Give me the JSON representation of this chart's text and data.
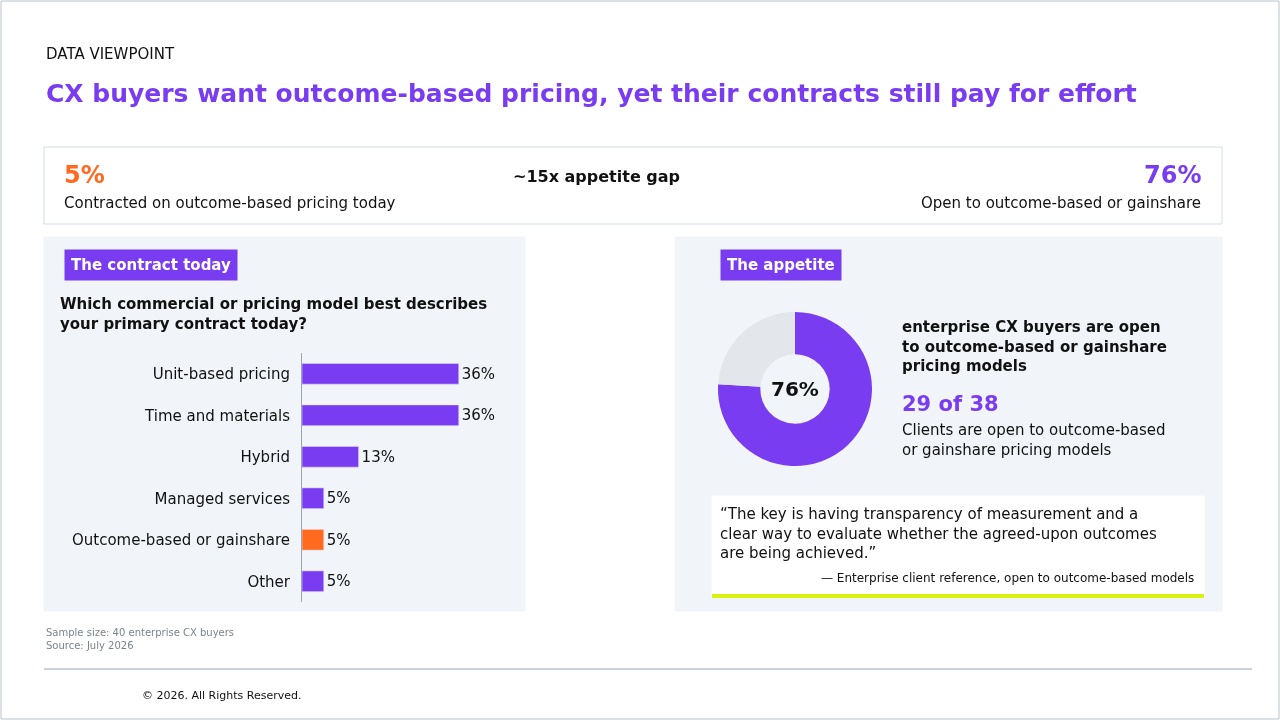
{
  "chart_data": [
    {
      "type": "other",
      "subtitle": "DATA VIEWPOINT",
      "title": "CX buyers want outcome-based pricing, yet their contracts still pay for effort",
      "annotations": [
        "5%",
        "Contracted on outcome-based pricing today",
        "~15x appetite gap",
        "76%",
        "Open to outcome-based or gainshare",
        "Sample size: 40 enterprise CX buyers",
        "Source: July 2026",
        "© 2026. All Rights Reserved."
      ]
    },
    {
      "type": "bar",
      "orientation": "horizontal",
      "title": "The contract today",
      "subtitle": "Which commercial or pricing model best describes your primary contract today?",
      "categories": [
        "Unit-based pricing",
        "Time and materials",
        "Hybrid",
        "Managed services",
        "Outcome-based or gainshare",
        "Other"
      ],
      "values": [
        36,
        36,
        13,
        5,
        5,
        5
      ],
      "colors": [
        "#7a3cf0",
        "#7a3cf0",
        "#7a3cf0",
        "#7a3cf0",
        "#ff6a1f",
        "#7a3cf0"
      ],
      "value_labels": [
        "36%",
        "36%",
        "13%",
        "5%",
        "5%",
        "5%"
      ]
    },
    {
      "type": "donut",
      "title": "The appetite",
      "categories": [
        null,
        null
      ],
      "values": [
        76,
        24
      ],
      "colors": [
        "#7a3cf0",
        "#e3e6eb"
      ],
      "value_labels": [
        "76%",
        null
      ],
      "annotations": [
        "enterprise CX buyers are open to outcome-based or gainshare pricing models",
        "29 of 38",
        "Clients are open to outcome-based or gainshare pricing models",
        "“The key is having transparency of measurement and a clear way to evaluate whether the agreed-upon outcomes are being achieved.”",
        "— Enterprise client reference, open to outcome-based models"
      ]
    }
  ]
}
